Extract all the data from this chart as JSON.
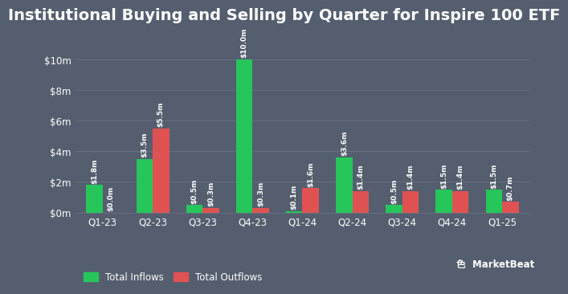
{
  "title": "Institutional Buying and Selling by Quarter for Inspire 100 ETF",
  "quarters": [
    "Q1-23",
    "Q2-23",
    "Q3-23",
    "Q4-23",
    "Q1-24",
    "Q2-24",
    "Q3-24",
    "Q4-24",
    "Q1-25"
  ],
  "inflows": [
    1.8,
    3.5,
    0.5,
    10.0,
    0.1,
    3.6,
    0.5,
    1.5,
    1.5
  ],
  "outflows": [
    0.0,
    5.5,
    0.3,
    0.3,
    1.6,
    1.4,
    1.4,
    1.4,
    0.7
  ],
  "inflow_labels": [
    "$1.8m",
    "$3.5m",
    "$0.5m",
    "$10.0m",
    "$0.1m",
    "$3.6m",
    "$0.5m",
    "$1.5m",
    "$1.5m"
  ],
  "outflow_labels": [
    "$0.0m",
    "$5.5m",
    "$0.3m",
    "$0.3m",
    "$1.6m",
    "$1.4m",
    "$1.4m",
    "$1.4m",
    "$0.7m"
  ],
  "inflow_color": "#26c65a",
  "outflow_color": "#e05252",
  "bg_color": "#545e6e",
  "text_color": "#ffffff",
  "grid_color": "#636e80",
  "ylim": [
    0,
    11
  ],
  "yticks": [
    0,
    2,
    4,
    6,
    8,
    10
  ],
  "ytick_labels": [
    "$0m",
    "$2m",
    "$4m",
    "$6m",
    "$8m",
    "$10m"
  ],
  "bar_width": 0.33,
  "title_fontsize": 14,
  "label_fontsize": 6.5,
  "tick_fontsize": 8.5,
  "legend_fontsize": 8.5
}
